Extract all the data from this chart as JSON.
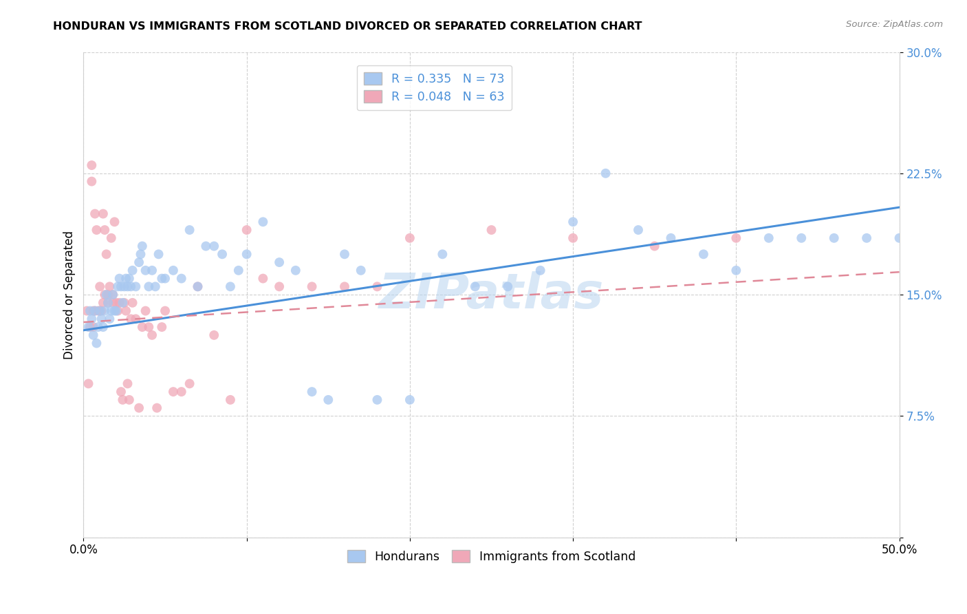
{
  "title": "HONDURAN VS IMMIGRANTS FROM SCOTLAND DIVORCED OR SEPARATED CORRELATION CHART",
  "source": "Source: ZipAtlas.com",
  "ylabel": "Divorced or Separated",
  "xlim": [
    0,
    0.5
  ],
  "ylim": [
    0,
    0.3
  ],
  "ytick_vals": [
    0.0,
    0.075,
    0.15,
    0.225,
    0.3
  ],
  "ytick_labels": [
    "",
    "7.5%",
    "15.0%",
    "22.5%",
    "30.0%"
  ],
  "xtick_vals": [
    0.0,
    0.1,
    0.2,
    0.3,
    0.4,
    0.5
  ],
  "xtick_labels": [
    "0.0%",
    "",
    "",
    "",
    "",
    "50.0%"
  ],
  "blue_color": "#a8c8f0",
  "pink_color": "#f0a8b8",
  "line_blue": "#4a90d9",
  "line_pink": "#e08898",
  "watermark": "ZIPatlas",
  "legend_top": [
    "R = 0.335   N = 73",
    "R = 0.048   N = 63"
  ],
  "legend_bottom": [
    "Hondurans",
    "Immigrants from Scotland"
  ],
  "honduran_x": [
    0.003,
    0.004,
    0.005,
    0.006,
    0.007,
    0.008,
    0.009,
    0.01,
    0.011,
    0.012,
    0.013,
    0.014,
    0.015,
    0.016,
    0.017,
    0.018,
    0.019,
    0.02,
    0.021,
    0.022,
    0.023,
    0.024,
    0.025,
    0.026,
    0.027,
    0.028,
    0.029,
    0.03,
    0.032,
    0.034,
    0.035,
    0.036,
    0.038,
    0.04,
    0.042,
    0.044,
    0.046,
    0.048,
    0.05,
    0.055,
    0.06,
    0.065,
    0.07,
    0.075,
    0.08,
    0.085,
    0.09,
    0.095,
    0.1,
    0.11,
    0.12,
    0.13,
    0.14,
    0.15,
    0.16,
    0.17,
    0.18,
    0.2,
    0.22,
    0.24,
    0.26,
    0.28,
    0.3,
    0.32,
    0.34,
    0.36,
    0.38,
    0.4,
    0.42,
    0.44,
    0.46,
    0.48,
    0.5
  ],
  "honduran_y": [
    0.13,
    0.14,
    0.135,
    0.125,
    0.14,
    0.12,
    0.13,
    0.14,
    0.135,
    0.13,
    0.14,
    0.15,
    0.145,
    0.135,
    0.14,
    0.15,
    0.14,
    0.14,
    0.155,
    0.16,
    0.155,
    0.145,
    0.155,
    0.16,
    0.155,
    0.16,
    0.155,
    0.165,
    0.155,
    0.17,
    0.175,
    0.18,
    0.165,
    0.155,
    0.165,
    0.155,
    0.175,
    0.16,
    0.16,
    0.165,
    0.16,
    0.19,
    0.155,
    0.18,
    0.18,
    0.175,
    0.155,
    0.165,
    0.175,
    0.195,
    0.17,
    0.165,
    0.09,
    0.085,
    0.175,
    0.165,
    0.085,
    0.085,
    0.175,
    0.155,
    0.155,
    0.165,
    0.195,
    0.225,
    0.19,
    0.185,
    0.175,
    0.165,
    0.185,
    0.185,
    0.185,
    0.185,
    0.185
  ],
  "scotland_x": [
    0.002,
    0.003,
    0.004,
    0.005,
    0.005,
    0.006,
    0.006,
    0.007,
    0.007,
    0.008,
    0.009,
    0.01,
    0.01,
    0.011,
    0.012,
    0.012,
    0.013,
    0.013,
    0.014,
    0.015,
    0.015,
    0.016,
    0.017,
    0.018,
    0.018,
    0.019,
    0.02,
    0.021,
    0.022,
    0.023,
    0.024,
    0.025,
    0.026,
    0.027,
    0.028,
    0.029,
    0.03,
    0.032,
    0.034,
    0.036,
    0.038,
    0.04,
    0.042,
    0.045,
    0.048,
    0.05,
    0.055,
    0.06,
    0.065,
    0.07,
    0.08,
    0.09,
    0.1,
    0.11,
    0.12,
    0.14,
    0.16,
    0.18,
    0.2,
    0.25,
    0.3,
    0.35,
    0.4
  ],
  "scotland_y": [
    0.14,
    0.095,
    0.13,
    0.23,
    0.22,
    0.14,
    0.13,
    0.2,
    0.14,
    0.19,
    0.14,
    0.155,
    0.14,
    0.14,
    0.2,
    0.145,
    0.15,
    0.19,
    0.175,
    0.145,
    0.15,
    0.155,
    0.185,
    0.145,
    0.15,
    0.195,
    0.145,
    0.14,
    0.145,
    0.09,
    0.085,
    0.145,
    0.14,
    0.095,
    0.085,
    0.135,
    0.145,
    0.135,
    0.08,
    0.13,
    0.14,
    0.13,
    0.125,
    0.08,
    0.13,
    0.14,
    0.09,
    0.09,
    0.095,
    0.155,
    0.125,
    0.085,
    0.19,
    0.16,
    0.155,
    0.155,
    0.155,
    0.155,
    0.185,
    0.19,
    0.185,
    0.18,
    0.185
  ]
}
